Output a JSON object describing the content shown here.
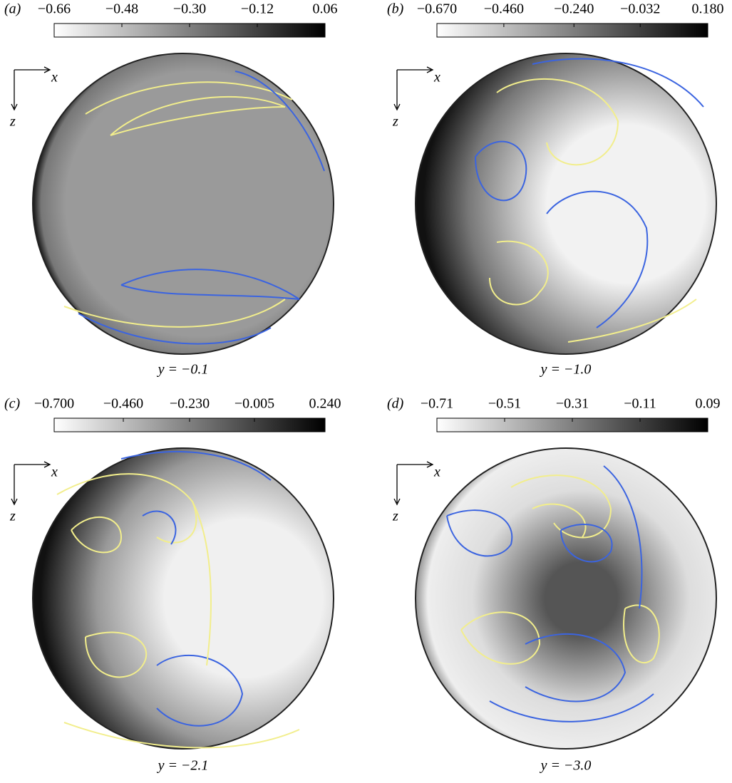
{
  "panels": [
    {
      "label": "(a)",
      "caption": "y = −0.1",
      "x_axis": "x",
      "z_axis": "z",
      "colorbar": {
        "ticks": [
          {
            "value": -0.66,
            "label": "−0.66"
          },
          {
            "value": -0.48,
            "label": "−0.48"
          },
          {
            "value": -0.3,
            "label": "−0.30"
          },
          {
            "value": -0.12,
            "label": "−0.12"
          },
          {
            "value": 0.06,
            "label": "0.06"
          }
        ]
      }
    },
    {
      "label": "(b)",
      "caption": "y = −1.0",
      "x_axis": "x",
      "z_axis": "z",
      "colorbar": {
        "ticks": [
          {
            "value": -0.67,
            "label": "−0.670"
          },
          {
            "value": -0.46,
            "label": "−0.460"
          },
          {
            "value": -0.24,
            "label": "−0.240"
          },
          {
            "value": -0.032,
            "label": "−0.032"
          },
          {
            "value": 0.18,
            "label": "0.180"
          }
        ]
      }
    },
    {
      "label": "(c)",
      "caption": "y = −2.1",
      "x_axis": "x",
      "z_axis": "z",
      "colorbar": {
        "ticks": [
          {
            "value": -0.7,
            "label": "−0.700"
          },
          {
            "value": -0.46,
            "label": "−0.460"
          },
          {
            "value": -0.23,
            "label": "−0.230"
          },
          {
            "value": -0.005,
            "label": "−0.005"
          },
          {
            "value": 0.24,
            "label": "0.240"
          }
        ]
      }
    },
    {
      "label": "(d)",
      "caption": "y = −3.0",
      "x_axis": "x",
      "z_axis": "z",
      "colorbar": {
        "ticks": [
          {
            "value": -0.71,
            "label": "−0.71"
          },
          {
            "value": -0.51,
            "label": "−0.51"
          },
          {
            "value": -0.31,
            "label": "−0.31"
          },
          {
            "value": -0.11,
            "label": "−0.11"
          },
          {
            "value": 0.09,
            "label": "0.09"
          }
        ]
      }
    }
  ]
}
